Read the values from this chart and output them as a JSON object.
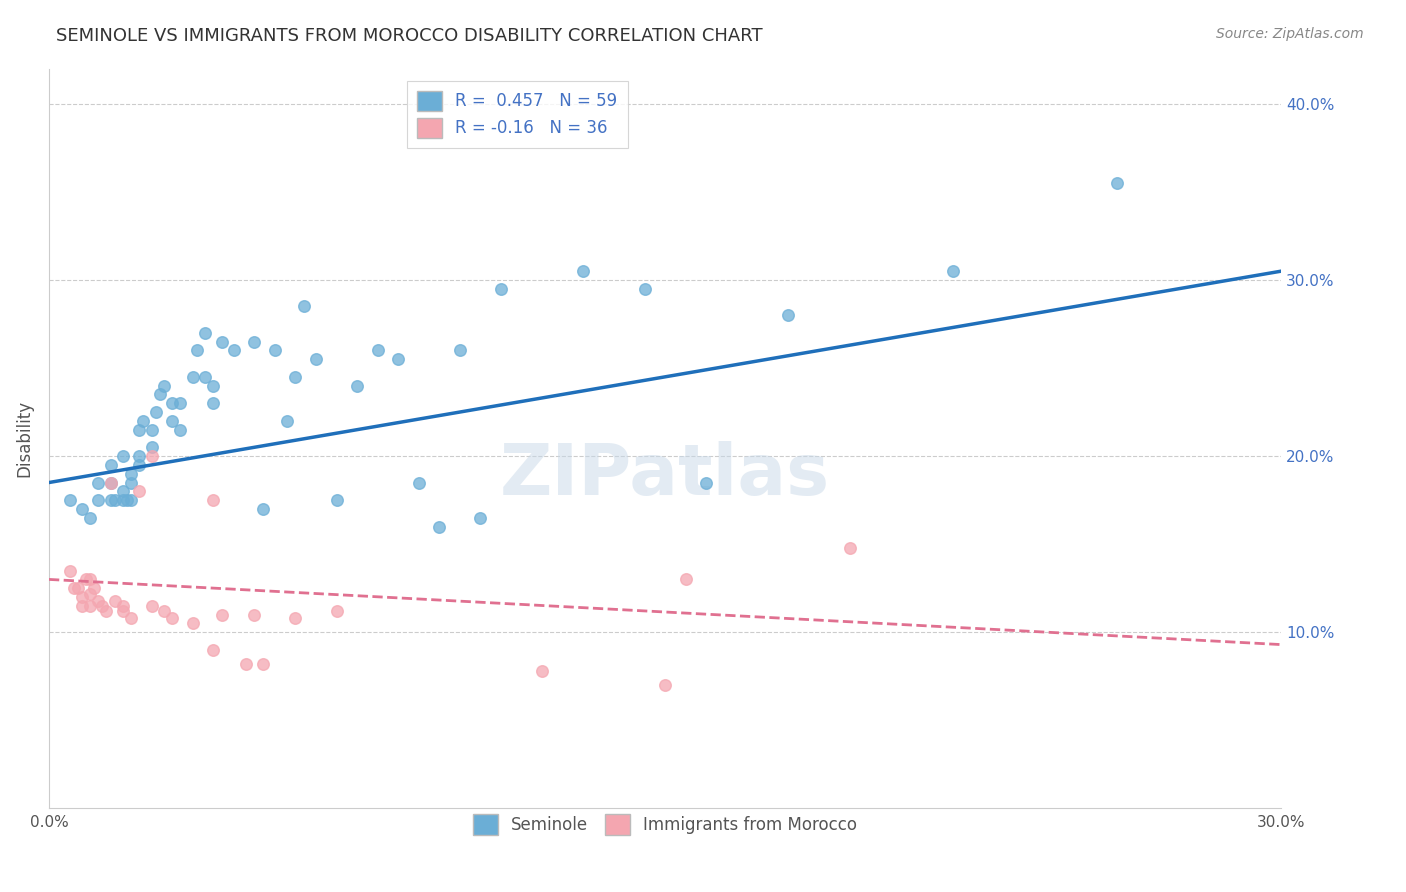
{
  "title": "SEMINOLE VS IMMIGRANTS FROM MOROCCO DISABILITY CORRELATION CHART",
  "source": "Source: ZipAtlas.com",
  "ylabel": "Disability",
  "xlim": [
    0.0,
    0.3
  ],
  "ylim": [
    0.0,
    0.42
  ],
  "yticks": [
    0.1,
    0.2,
    0.3,
    0.4
  ],
  "ytick_labels": [
    "10.0%",
    "20.0%",
    "30.0%",
    "40.0%"
  ],
  "blue_R": 0.457,
  "blue_N": 59,
  "pink_R": -0.16,
  "pink_N": 36,
  "blue_color": "#6baed6",
  "pink_color": "#f4a6b0",
  "blue_line_color": "#1f6fba",
  "pink_line_color": "#e07090",
  "watermark": "ZIPatlas",
  "blue_scatter_x": [
    0.005,
    0.008,
    0.01,
    0.012,
    0.012,
    0.015,
    0.015,
    0.015,
    0.016,
    0.018,
    0.018,
    0.018,
    0.019,
    0.02,
    0.02,
    0.02,
    0.022,
    0.022,
    0.022,
    0.023,
    0.025,
    0.025,
    0.026,
    0.027,
    0.028,
    0.03,
    0.03,
    0.032,
    0.032,
    0.035,
    0.036,
    0.038,
    0.038,
    0.04,
    0.04,
    0.042,
    0.045,
    0.05,
    0.052,
    0.055,
    0.058,
    0.06,
    0.062,
    0.065,
    0.07,
    0.075,
    0.08,
    0.085,
    0.09,
    0.095,
    0.1,
    0.105,
    0.11,
    0.13,
    0.145,
    0.16,
    0.18,
    0.22,
    0.26
  ],
  "blue_scatter_y": [
    0.175,
    0.17,
    0.165,
    0.185,
    0.175,
    0.195,
    0.185,
    0.175,
    0.175,
    0.2,
    0.18,
    0.175,
    0.175,
    0.19,
    0.185,
    0.175,
    0.215,
    0.2,
    0.195,
    0.22,
    0.215,
    0.205,
    0.225,
    0.235,
    0.24,
    0.23,
    0.22,
    0.23,
    0.215,
    0.245,
    0.26,
    0.27,
    0.245,
    0.24,
    0.23,
    0.265,
    0.26,
    0.265,
    0.17,
    0.26,
    0.22,
    0.245,
    0.285,
    0.255,
    0.175,
    0.24,
    0.26,
    0.255,
    0.185,
    0.16,
    0.26,
    0.165,
    0.295,
    0.305,
    0.295,
    0.185,
    0.28,
    0.305,
    0.355
  ],
  "pink_scatter_x": [
    0.005,
    0.006,
    0.007,
    0.008,
    0.008,
    0.009,
    0.01,
    0.01,
    0.01,
    0.011,
    0.012,
    0.013,
    0.014,
    0.015,
    0.016,
    0.018,
    0.018,
    0.02,
    0.022,
    0.025,
    0.025,
    0.028,
    0.03,
    0.035,
    0.04,
    0.04,
    0.042,
    0.048,
    0.05,
    0.052,
    0.06,
    0.07,
    0.12,
    0.15,
    0.155,
    0.195
  ],
  "pink_scatter_y": [
    0.135,
    0.125,
    0.125,
    0.12,
    0.115,
    0.13,
    0.13,
    0.122,
    0.115,
    0.125,
    0.118,
    0.115,
    0.112,
    0.185,
    0.118,
    0.115,
    0.112,
    0.108,
    0.18,
    0.2,
    0.115,
    0.112,
    0.108,
    0.105,
    0.175,
    0.09,
    0.11,
    0.082,
    0.11,
    0.082,
    0.108,
    0.112,
    0.078,
    0.07,
    0.13,
    0.148
  ],
  "blue_line_x": [
    0.0,
    0.3
  ],
  "blue_line_y_start": 0.185,
  "blue_line_y_end": 0.305,
  "pink_line_x": [
    0.0,
    0.3
  ],
  "pink_line_y_start": 0.13,
  "pink_line_y_end": 0.093
}
